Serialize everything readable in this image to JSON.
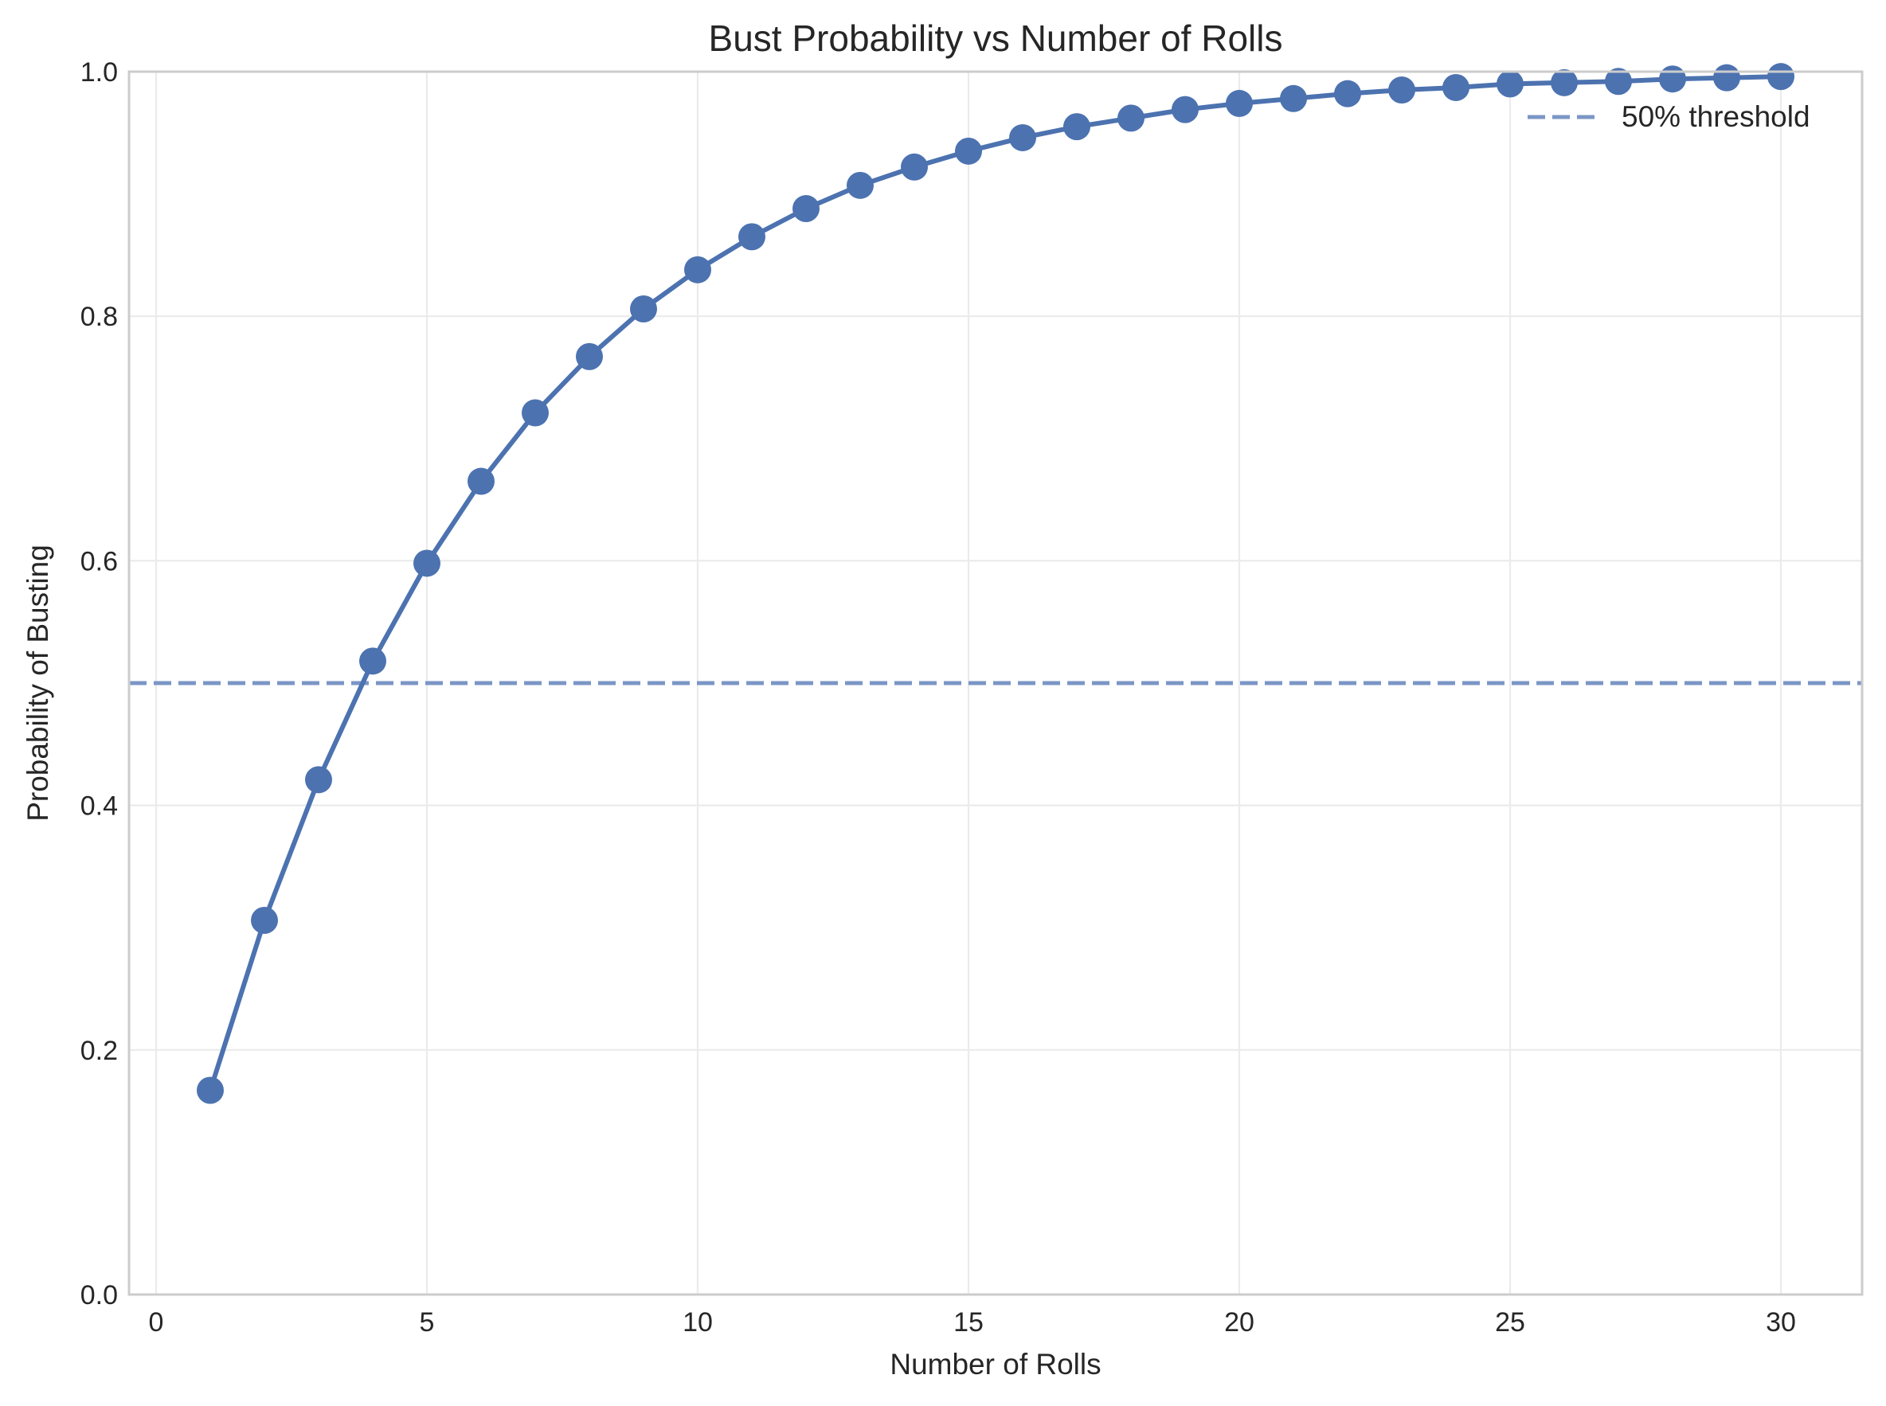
{
  "chart_data": {
    "type": "line",
    "title": "Bust Probability vs Number of Rolls",
    "xlabel": "Number of Rolls",
    "ylabel": "Probability of Busting",
    "xlim": [
      -0.5,
      31.5
    ],
    "ylim": [
      0.0,
      1.0
    ],
    "x_ticks": [
      0,
      5,
      10,
      15,
      20,
      25,
      30
    ],
    "x_tick_labels": [
      "0",
      "5",
      "10",
      "15",
      "20",
      "25",
      "30"
    ],
    "y_ticks": [
      0.0,
      0.2,
      0.4,
      0.6,
      0.8,
      1.0
    ],
    "y_tick_labels": [
      "0.0",
      "0.2",
      "0.4",
      "0.6",
      "0.8",
      "1.0"
    ],
    "grid": true,
    "legend": {
      "placement": "top-right",
      "entries": [
        "50% threshold"
      ]
    },
    "series": [
      {
        "name": "",
        "color": "#4c72b0",
        "marker": "circle",
        "x": [
          1,
          2,
          3,
          4,
          5,
          6,
          7,
          8,
          9,
          10,
          11,
          12,
          13,
          14,
          15,
          16,
          17,
          18,
          19,
          20,
          21,
          22,
          23,
          24,
          25,
          26,
          27,
          28,
          29,
          30
        ],
        "y": [
          0.167,
          0.306,
          0.421,
          0.518,
          0.598,
          0.665,
          0.721,
          0.767,
          0.806,
          0.838,
          0.865,
          0.888,
          0.907,
          0.922,
          0.935,
          0.946,
          0.955,
          0.962,
          0.969,
          0.974,
          0.978,
          0.982,
          0.985,
          0.987,
          0.99,
          0.991,
          0.992,
          0.994,
          0.995,
          0.996
        ]
      }
    ],
    "reference_lines": [
      {
        "name": "50% threshold",
        "orientation": "horizontal",
        "y": 0.5,
        "style": "dashed",
        "color": "#7b96c6"
      }
    ]
  }
}
